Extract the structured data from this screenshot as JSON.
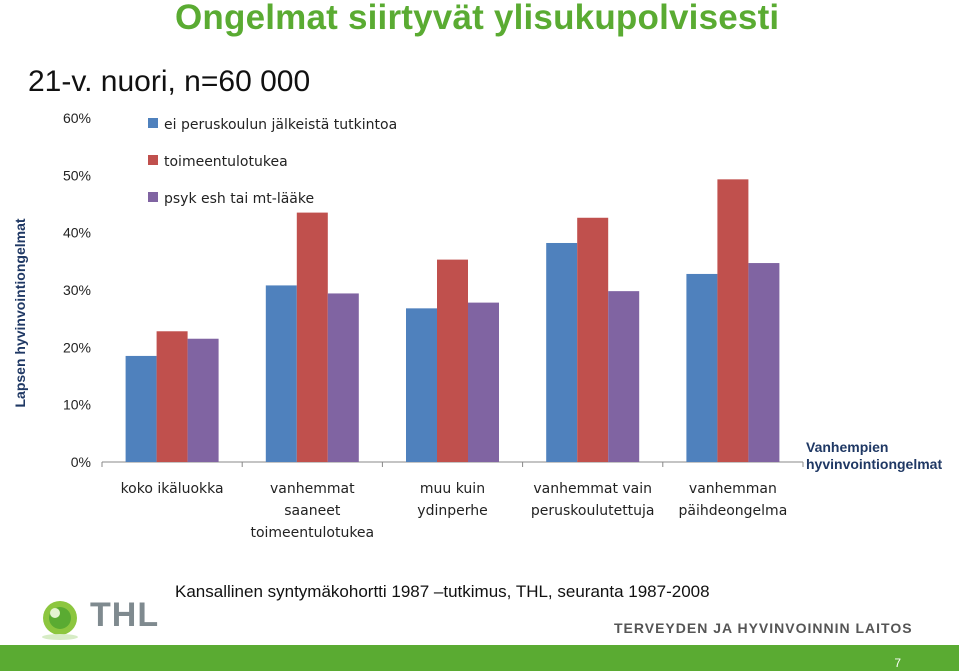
{
  "title": "Ongelmat siirtyvät ylisukupolvisesti",
  "subtitle": "21-v. nuori, n=60 000",
  "side_label": "Lapsen hyvinvointiongelmat",
  "bottom_note": "Vanhempien hyvinvointiongelmat",
  "source": "Kansallinen syntymäkohortti 1987 –tutkimus, THL, seuranta 1987-2008",
  "logo_text": "THL",
  "org_name": "TERVEYDEN JA HYVINVOINNIN LAITOS",
  "page_number": "7",
  "colors": {
    "title": "#5aab32",
    "footer": "#5aab32"
  },
  "chart_data": {
    "type": "bar",
    "categories": [
      [
        "koko ikäluokka"
      ],
      [
        "vanhemmat",
        "saaneet",
        "toimeentulotukea"
      ],
      [
        "muu kuin",
        "ydinperhe"
      ],
      [
        "vanhemmat vain",
        "peruskoulutettuja"
      ],
      [
        "vanhemman",
        "päihdeongelma"
      ]
    ],
    "series": [
      {
        "name": "ei peruskoulun jälkeistä tutkintoa",
        "color": "#4f81bd",
        "values": [
          18.5,
          30.8,
          26.8,
          38.2,
          32.8
        ]
      },
      {
        "name": "toimeentulotukea",
        "color": "#c0504d",
        "values": [
          22.8,
          43.5,
          35.3,
          42.6,
          49.3
        ]
      },
      {
        "name": "psyk esh tai mt-lääke",
        "color": "#8064a2",
        "values": [
          21.5,
          29.4,
          27.8,
          29.8,
          34.7
        ]
      }
    ],
    "yticks": [
      "0%",
      "10%",
      "20%",
      "30%",
      "40%",
      "50%",
      "60%"
    ],
    "ylim": [
      0,
      60
    ],
    "legend": "top-left"
  }
}
